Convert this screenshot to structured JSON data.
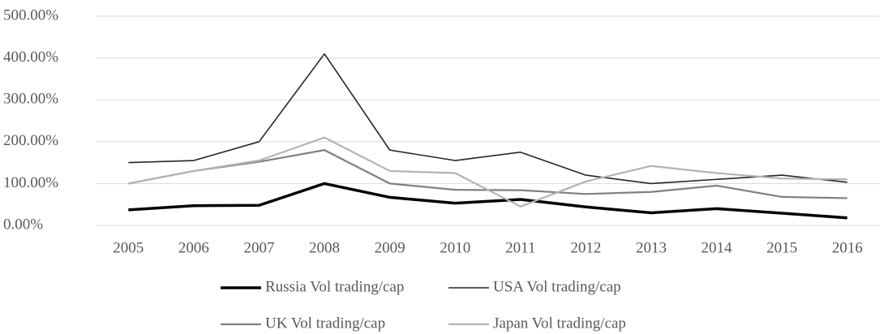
{
  "chart_data": {
    "type": "line",
    "categories": [
      "2005",
      "2006",
      "2007",
      "2008",
      "2009",
      "2010",
      "2011",
      "2012",
      "2013",
      "2014",
      "2015",
      "2016"
    ],
    "series": [
      {
        "name": "Russia Vol trading/cap",
        "color": "#000000",
        "values": [
          37,
          47,
          48,
          100,
          67,
          53,
          62,
          44,
          30,
          40,
          29,
          18
        ]
      },
      {
        "name": "USA Vol trading/cap",
        "color": "#262626",
        "values": [
          150,
          155,
          200,
          410,
          180,
          155,
          175,
          120,
          100,
          110,
          120,
          103
        ]
      },
      {
        "name": "UK Vol trading/cap",
        "color": "#808080",
        "values": [
          100,
          130,
          152,
          180,
          100,
          85,
          84,
          75,
          80,
          95,
          68,
          65
        ]
      },
      {
        "name": "Japan Vol trading/cap",
        "color": "#b3b3b3",
        "values": [
          100,
          130,
          155,
          210,
          130,
          125,
          45,
          105,
          142,
          125,
          112,
          110
        ]
      }
    ],
    "ylim": [
      0,
      500
    ],
    "yticks": [
      {
        "value": 0,
        "label": "0.00%"
      },
      {
        "value": 100,
        "label": "100.00%"
      },
      {
        "value": 200,
        "label": "200.00%"
      },
      {
        "value": 300,
        "label": "300.00%"
      },
      {
        "value": 400,
        "label": "400.00%"
      },
      {
        "value": 500,
        "label": "500.00%"
      }
    ],
    "grid": true
  }
}
